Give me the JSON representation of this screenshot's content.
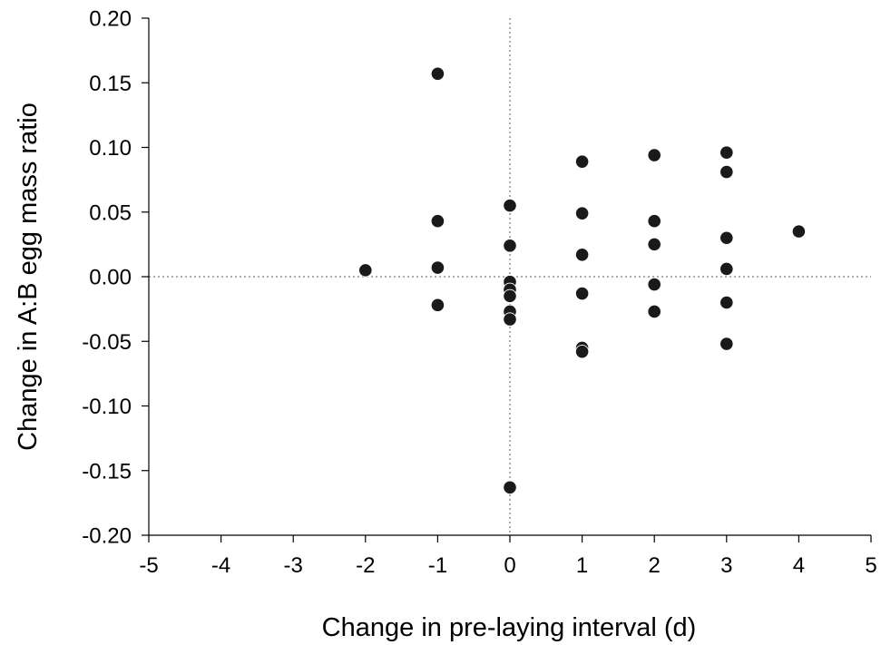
{
  "chart_data": {
    "type": "scatter",
    "xlabel": "Change in pre-laying interval (d)",
    "ylabel": "Change in A:B egg mass ratio",
    "xlim": [
      -5,
      5
    ],
    "ylim": [
      -0.2,
      0.2
    ],
    "x_ticks": [
      "-5",
      "-4",
      "-3",
      "-2",
      "-1",
      "0",
      "1",
      "2",
      "3",
      "4",
      "5"
    ],
    "y_ticks": [
      "0.20",
      "0.15",
      "0.10",
      "0.05",
      "0.00",
      "-0.05",
      "-0.10",
      "-0.15",
      "-0.20"
    ],
    "reference_lines": {
      "x": 0,
      "y": 0
    },
    "grid": false,
    "marker_color": "#1a1a1a",
    "series": [
      {
        "points": [
          {
            "x": -2,
            "y": 0.005
          },
          {
            "x": -1,
            "y": 0.157
          },
          {
            "x": -1,
            "y": 0.043
          },
          {
            "x": -1,
            "y": 0.007
          },
          {
            "x": -1,
            "y": -0.022
          },
          {
            "x": 0,
            "y": 0.055
          },
          {
            "x": 0,
            "y": 0.024
          },
          {
            "x": 0,
            "y": -0.004
          },
          {
            "x": 0,
            "y": -0.01
          },
          {
            "x": 0,
            "y": -0.015
          },
          {
            "x": 0,
            "y": -0.027
          },
          {
            "x": 0,
            "y": -0.033
          },
          {
            "x": 0,
            "y": -0.163
          },
          {
            "x": 1,
            "y": 0.089
          },
          {
            "x": 1,
            "y": 0.049
          },
          {
            "x": 1,
            "y": 0.017
          },
          {
            "x": 1,
            "y": -0.013
          },
          {
            "x": 1,
            "y": -0.055
          },
          {
            "x": 1,
            "y": -0.058
          },
          {
            "x": 2,
            "y": 0.094
          },
          {
            "x": 2,
            "y": 0.043
          },
          {
            "x": 2,
            "y": 0.025
          },
          {
            "x": 2,
            "y": -0.006
          },
          {
            "x": 2,
            "y": -0.027
          },
          {
            "x": 3,
            "y": 0.096
          },
          {
            "x": 3,
            "y": 0.081
          },
          {
            "x": 3,
            "y": 0.03
          },
          {
            "x": 3,
            "y": 0.006
          },
          {
            "x": 3,
            "y": -0.02
          },
          {
            "x": 3,
            "y": -0.052
          },
          {
            "x": 4,
            "y": 0.035
          }
        ]
      }
    ]
  }
}
